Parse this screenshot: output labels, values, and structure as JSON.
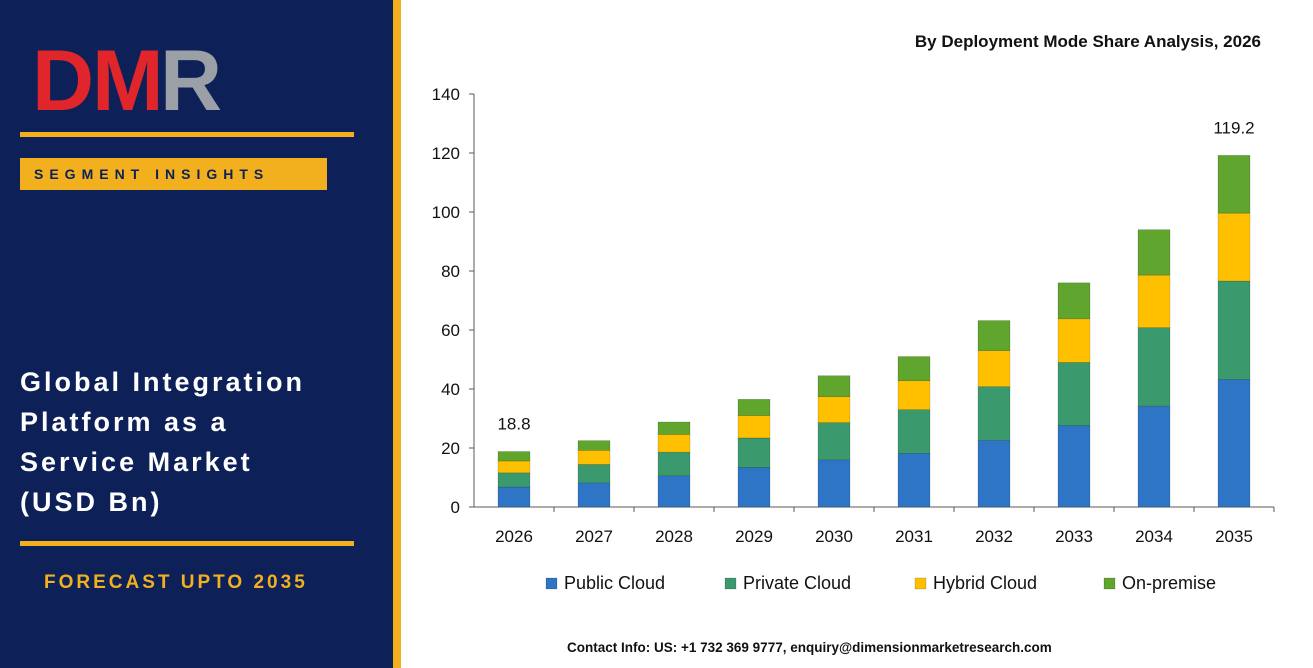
{
  "brand": {
    "logo_text": "DMR",
    "badge": "SEGMENT INSIGHTS"
  },
  "title_lines": [
    "Global Integration",
    "Platform as a",
    "Service Market",
    "(USD Bn)"
  ],
  "forecast": "FORECAST UPTO 2035",
  "contact": "Contact Info: US: +1 732 369 9777, enquiry@dimensionmarketresearch.com",
  "colors": {
    "panel": "#0d2158",
    "accent": "#f2b01e",
    "logo_red": "#e0252b",
    "logo_grey": "#9aa0a6",
    "public_cloud": "#2e75c6",
    "private_cloud": "#3a9a6e",
    "hybrid_cloud": "#ffc000",
    "on_premise": "#5fa52e"
  },
  "chart_data": {
    "type": "bar",
    "stacked": true,
    "title": "By Deployment Mode Share Analysis, 2026",
    "categories": [
      "2026",
      "2027",
      "2028",
      "2029",
      "2030",
      "2031",
      "2032",
      "2033",
      "2034",
      "2035"
    ],
    "series": [
      {
        "name": "Public Cloud",
        "values": [
          6.8,
          8.2,
          10.6,
          13.4,
          16.0,
          18.2,
          22.6,
          27.6,
          34.2,
          43.2
        ]
      },
      {
        "name": "Private Cloud",
        "values": [
          4.8,
          6.2,
          8.0,
          10.0,
          12.6,
          14.8,
          18.2,
          21.4,
          26.6,
          33.4
        ]
      },
      {
        "name": "Hybrid Cloud",
        "values": [
          4.0,
          4.8,
          6.0,
          7.6,
          8.8,
          9.8,
          12.2,
          14.8,
          17.8,
          23.0
        ]
      },
      {
        "name": "On-premise",
        "values": [
          3.2,
          3.3,
          4.2,
          5.5,
          7.1,
          8.2,
          10.2,
          12.2,
          15.4,
          19.6
        ]
      }
    ],
    "data_labels": [
      {
        "category": "2026",
        "text": "18.8"
      },
      {
        "category": "2035",
        "text": "119.2"
      }
    ],
    "ylim": [
      0,
      140
    ],
    "yticks": [
      0,
      20,
      40,
      60,
      80,
      100,
      120,
      140
    ],
    "grid": false,
    "legend": "bottom"
  }
}
